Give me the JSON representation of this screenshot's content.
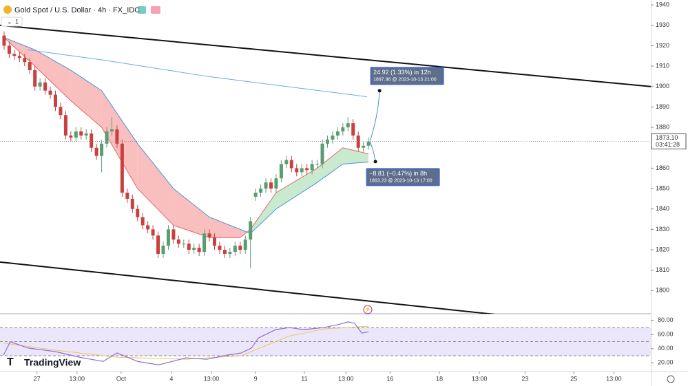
{
  "header": {
    "title": "Gold Spot / U.S. Dollar · 4h · FX_IDC",
    "layout_button": "1",
    "logo": "TradingView"
  },
  "chart_data": [
    {
      "type": "candlestick",
      "x": [
        0,
        1,
        2,
        3,
        4,
        5,
        6,
        7,
        8,
        9,
        10,
        11,
        12,
        13,
        14,
        15,
        16,
        17,
        18,
        19,
        20,
        21,
        22,
        23,
        24,
        25,
        26,
        27,
        28,
        29,
        30,
        31,
        32,
        33,
        34,
        35,
        36,
        37,
        38,
        39,
        40,
        41,
        42,
        43,
        44,
        45,
        46,
        47,
        48,
        49,
        50,
        51,
        52,
        53,
        54,
        55,
        56,
        57,
        58,
        59,
        60,
        61,
        62,
        63,
        64,
        65,
        66,
        67,
        68,
        69,
        70,
        71
      ],
      "open": [
        1925,
        1920,
        1916,
        1915,
        1914,
        1912,
        1908,
        1900,
        1902,
        1898,
        1896,
        1890,
        1886,
        1876,
        1875,
        1878,
        1876,
        1877,
        1870,
        1866,
        1872,
        1878,
        1879,
        1872,
        1848,
        1845,
        1840,
        1836,
        1832,
        1830,
        1827,
        1818,
        1822,
        1830,
        1825,
        1823,
        1823,
        1820,
        1821,
        1819,
        1828,
        1826,
        1822,
        1820,
        1818,
        1819,
        1822,
        1820,
        1825,
        1846,
        1848,
        1850,
        1853,
        1850,
        1855,
        1862,
        1864,
        1860,
        1858,
        1860,
        1859,
        1862,
        1862,
        1872,
        1874,
        1876,
        1878,
        1880,
        1882,
        1876,
        1870,
        1871
      ],
      "high": [
        1927,
        1922,
        1918,
        1917,
        1916,
        1914,
        1910,
        1904,
        1904,
        1900,
        1898,
        1892,
        1888,
        1878,
        1880,
        1880,
        1879,
        1879,
        1872,
        1874,
        1880,
        1885,
        1881,
        1874,
        1850,
        1847,
        1842,
        1838,
        1834,
        1832,
        1829,
        1824,
        1832,
        1832,
        1827,
        1825,
        1825,
        1823,
        1823,
        1830,
        1830,
        1828,
        1824,
        1822,
        1821,
        1824,
        1824,
        1827,
        1836,
        1850,
        1852,
        1855,
        1855,
        1857,
        1864,
        1866,
        1866,
        1862,
        1862,
        1862,
        1864,
        1864,
        1874,
        1876,
        1878,
        1880,
        1882,
        1885,
        1884,
        1878,
        1873,
        1875
      ],
      "low": [
        1918,
        1914,
        1913,
        1912,
        1910,
        1906,
        1898,
        1898,
        1896,
        1894,
        1888,
        1884,
        1874,
        1873,
        1873,
        1874,
        1874,
        1868,
        1864,
        1858,
        1870,
        1876,
        1870,
        1846,
        1843,
        1838,
        1834,
        1830,
        1828,
        1825,
        1816,
        1816,
        1820,
        1823,
        1821,
        1821,
        1818,
        1818,
        1817,
        1817,
        1824,
        1820,
        1818,
        1816,
        1816,
        1817,
        1818,
        1818,
        1811,
        1844,
        1846,
        1848,
        1848,
        1848,
        1853,
        1860,
        1858,
        1856,
        1856,
        1857,
        1857,
        1860,
        1860,
        1870,
        1872,
        1874,
        1876,
        1878,
        1874,
        1868,
        1868,
        1869
      ],
      "close": [
        1920,
        1916,
        1915,
        1914,
        1912,
        1908,
        1900,
        1902,
        1898,
        1896,
        1890,
        1886,
        1876,
        1875,
        1878,
        1876,
        1877,
        1870,
        1866,
        1872,
        1878,
        1879,
        1872,
        1848,
        1845,
        1840,
        1836,
        1832,
        1830,
        1827,
        1818,
        1822,
        1830,
        1825,
        1823,
        1823,
        1820,
        1821,
        1819,
        1828,
        1826,
        1822,
        1820,
        1818,
        1819,
        1822,
        1820,
        1825,
        1834,
        1848,
        1850,
        1853,
        1850,
        1855,
        1862,
        1864,
        1860,
        1858,
        1860,
        1859,
        1862,
        1862,
        1872,
        1874,
        1876,
        1878,
        1880,
        1882,
        1876,
        1870,
        1871,
        1873
      ],
      "up_color": "#5b9d72",
      "down_color": "#c9403e",
      "cloud": {
        "x": [
          0,
          6,
          13,
          19,
          26,
          33,
          40,
          46,
          48,
          53,
          61,
          66,
          71
        ],
        "fast": [
          1924,
          1910,
          1893,
          1880,
          1850,
          1832,
          1826,
          1826,
          1830,
          1848,
          1860,
          1870,
          1867
        ],
        "slow": [
          1924,
          1918,
          1908,
          1898,
          1872,
          1850,
          1836,
          1830,
          1828,
          1840,
          1853,
          1862,
          1863
        ],
        "fast_color": "#e06b66",
        "slow_color": "#4a90d9",
        "bear_fill": "#f8b4b4",
        "bull_fill": "#bfe6c6"
      },
      "sma": {
        "x": [
          4.6,
          19.3,
          39.5,
          70.7
        ],
        "values": [
          1918,
          1913,
          1905,
          1895
        ],
        "color": "#6aa8e8"
      },
      "trendlines": [
        {
          "x": [
            -0.8,
            126
          ],
          "y": [
            1930,
            1900
          ]
        },
        {
          "x": [
            -0.8,
            96.9
          ],
          "y": [
            1814,
            1788
          ]
        }
      ],
      "last_price": {
        "value": 1873.1,
        "label": "1873.10"
      },
      "countdown": "03:41:28",
      "measures": [
        {
          "text": "24.92 (1.33%) in 12h",
          "detail": "1897.96 @ 2023-10-13  21:00",
          "price": 1897.96
        },
        {
          "text": "−8.81 (−0.47%) in 8h",
          "detail": "1863.23 @ 2023-10-13  17:00",
          "price": 1863.23
        }
      ],
      "xlim": [
        -0.8,
        126
      ],
      "ylim": [
        1789,
        1942.4
      ],
      "grid": false,
      "yticks": [
        1800,
        1810,
        1820,
        1830,
        1840,
        1850,
        1860,
        1870,
        1880,
        1890,
        1900,
        1910,
        1920,
        1930,
        1940
      ],
      "xticks": [
        {
          "value": 6.4,
          "label": "27"
        },
        {
          "value": 14.2,
          "label": "13:00"
        },
        {
          "value": 22.8,
          "label": "Oct"
        },
        {
          "value": 32.6,
          "label": "4"
        },
        {
          "value": 40.4,
          "label": "13:00"
        },
        {
          "value": 49,
          "label": "9"
        },
        {
          "value": 58.5,
          "label": "11"
        },
        {
          "value": 66.6,
          "label": "13:00"
        },
        {
          "value": 75.2,
          "label": "16"
        },
        {
          "value": 84.8,
          "label": "18"
        },
        {
          "value": 92.6,
          "label": "13:00"
        },
        {
          "value": 101.5,
          "label": "23"
        },
        {
          "value": 111,
          "label": "25"
        },
        {
          "value": 118.8,
          "label": "13:00"
        }
      ]
    },
    {
      "type": "rsi",
      "x": [
        -0.1,
        1.2,
        4.6,
        9.9,
        15.3,
        19.3,
        22,
        26,
        30.1,
        35.4,
        39.5,
        43.5,
        46.2,
        48.2,
        49.5,
        52.9,
        55.6,
        58.3,
        62.3,
        65,
        67,
        68.3,
        69.7,
        71
      ],
      "values": [
        31,
        50,
        41,
        36,
        27,
        22,
        34,
        22,
        17,
        27,
        25,
        31,
        34,
        41,
        55,
        67,
        70,
        67,
        70,
        74,
        78,
        76,
        62,
        64
      ],
      "color": "#8e6fd6",
      "ma": {
        "x": [
          -0.1,
          9.9,
          22,
          35.4,
          46.2,
          49.5,
          55.6,
          62.3,
          71
        ],
        "values": [
          48,
          38,
          28,
          25,
          30,
          40,
          58,
          68,
          72
        ],
        "color": "#e8c95a"
      },
      "bands": [
        30,
        50,
        70
      ],
      "band_fill": "#ece6fb",
      "ylim": [
        7.6,
        88.6
      ],
      "yticks": [
        {
          "value": 20,
          "label": "20.00"
        },
        {
          "value": 40,
          "label": "40.00"
        },
        {
          "value": 60,
          "label": "60.00"
        },
        {
          "value": 80,
          "label": "80.00"
        }
      ]
    }
  ]
}
